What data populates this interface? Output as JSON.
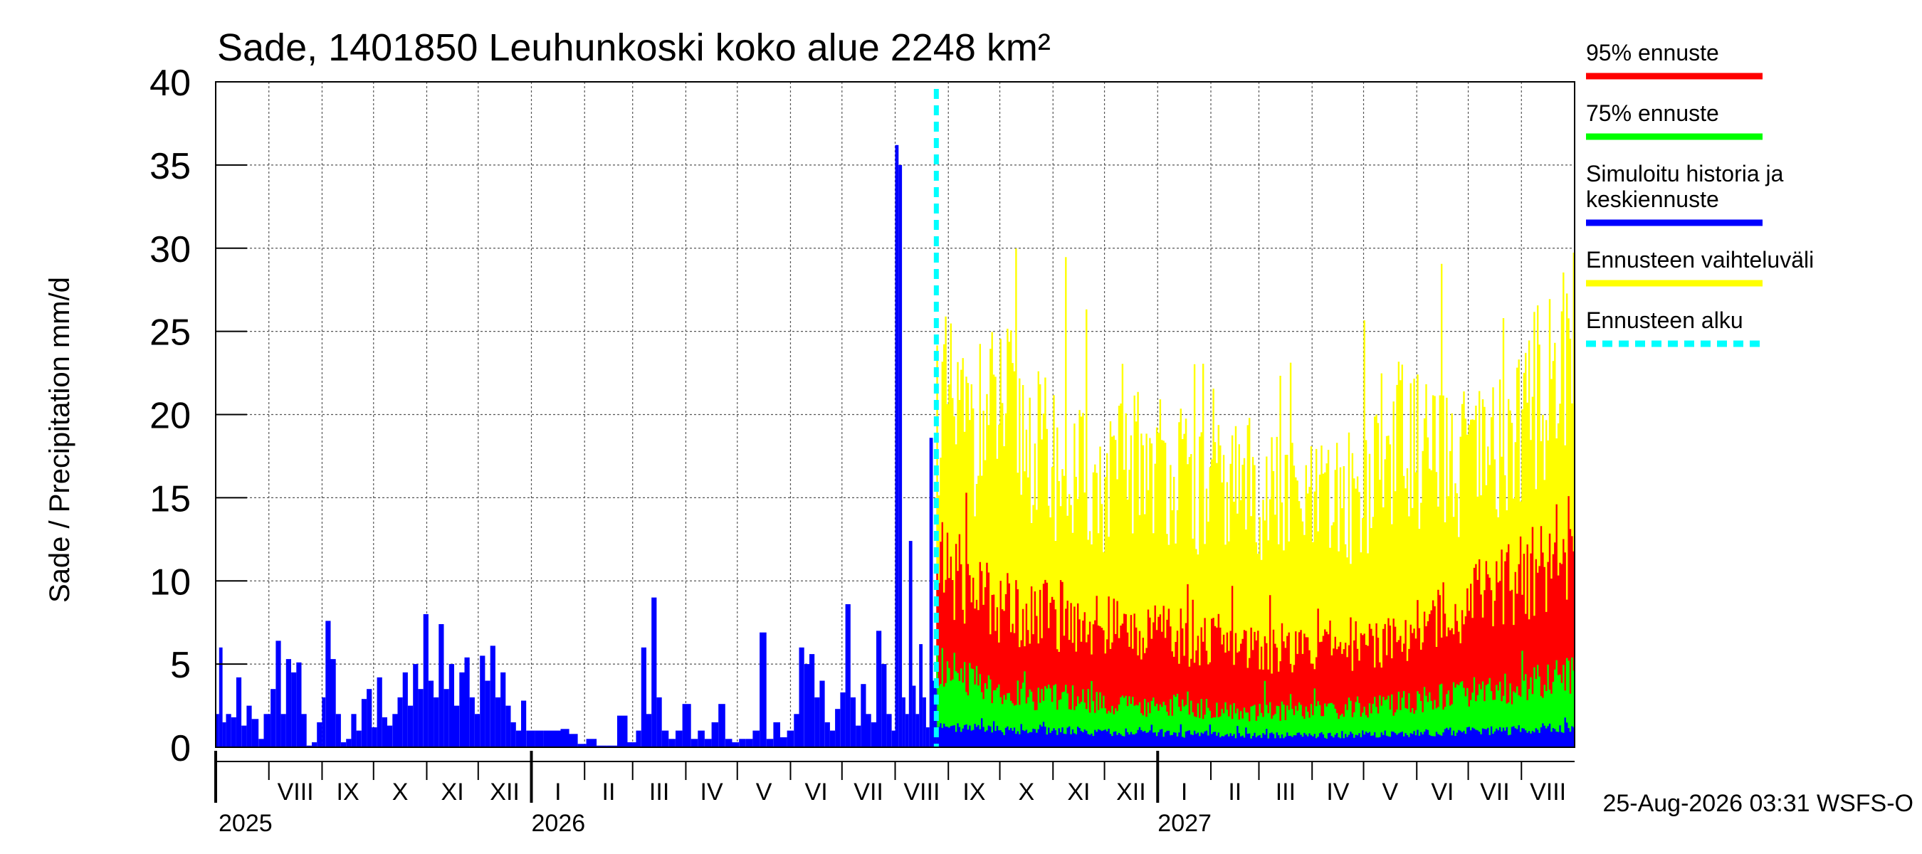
{
  "chart_data": {
    "type": "bar",
    "title": "Sade, 1401850 Leuhunkoski koko alue 2248 km²",
    "ylabel": "Sade / Precipitation   mm/d",
    "xlabel": "",
    "ylim": [
      0,
      40
    ],
    "yticks": [
      0,
      5,
      10,
      15,
      20,
      25,
      30,
      35,
      40
    ],
    "grid": true,
    "legend_position": "right",
    "x_range": [
      "2025-07-01",
      "2027-08-31"
    ],
    "forecast_start": "2026-08-25",
    "months": [
      {
        "label": "VIII",
        "start": "2025-08-01"
      },
      {
        "label": "IX",
        "start": "2025-09-01"
      },
      {
        "label": "X",
        "start": "2025-10-01"
      },
      {
        "label": "XI",
        "start": "2025-11-01"
      },
      {
        "label": "XII",
        "start": "2025-12-01"
      },
      {
        "label": "I",
        "start": "2026-01-01"
      },
      {
        "label": "II",
        "start": "2026-02-01"
      },
      {
        "label": "III",
        "start": "2026-03-01"
      },
      {
        "label": "IV",
        "start": "2026-04-01"
      },
      {
        "label": "V",
        "start": "2026-05-01"
      },
      {
        "label": "VI",
        "start": "2026-06-01"
      },
      {
        "label": "VII",
        "start": "2026-07-01"
      },
      {
        "label": "VIII",
        "start": "2026-08-01"
      },
      {
        "label": "IX",
        "start": "2026-09-01"
      },
      {
        "label": "X",
        "start": "2026-10-01"
      },
      {
        "label": "XI",
        "start": "2026-11-01"
      },
      {
        "label": "XII",
        "start": "2026-12-01"
      },
      {
        "label": "I",
        "start": "2027-01-01"
      },
      {
        "label": "II",
        "start": "2027-02-01"
      },
      {
        "label": "III",
        "start": "2027-03-01"
      },
      {
        "label": "IV",
        "start": "2027-04-01"
      },
      {
        "label": "V",
        "start": "2027-05-01"
      },
      {
        "label": "VI",
        "start": "2027-06-01"
      },
      {
        "label": "VII",
        "start": "2027-07-01"
      },
      {
        "label": "VIII",
        "start": "2027-08-01"
      }
    ],
    "years": [
      {
        "label": "2025",
        "start": "2025-07-01"
      },
      {
        "label": "2026",
        "start": "2026-01-01"
      },
      {
        "label": "2027",
        "start": "2027-01-01"
      }
    ],
    "history": {
      "name": "Simuloitu historia ja keskiennuste",
      "color": "#0000ff",
      "points": [
        [
          "2025-07-01",
          2.0
        ],
        [
          "2025-07-03",
          6.0
        ],
        [
          "2025-07-05",
          1.5
        ],
        [
          "2025-07-07",
          2.0
        ],
        [
          "2025-07-10",
          1.8
        ],
        [
          "2025-07-13",
          4.2
        ],
        [
          "2025-07-16",
          1.3
        ],
        [
          "2025-07-19",
          2.5
        ],
        [
          "2025-07-22",
          1.7
        ],
        [
          "2025-07-26",
          0.5
        ],
        [
          "2025-07-29",
          2.0
        ],
        [
          "2025-08-02",
          3.5
        ],
        [
          "2025-08-05",
          6.4
        ],
        [
          "2025-08-08",
          2.0
        ],
        [
          "2025-08-11",
          5.3
        ],
        [
          "2025-08-14",
          4.5
        ],
        [
          "2025-08-17",
          5.1
        ],
        [
          "2025-08-20",
          2.0
        ],
        [
          "2025-08-23",
          0.1
        ],
        [
          "2025-08-26",
          0.3
        ],
        [
          "2025-08-29",
          1.5
        ],
        [
          "2025-09-01",
          3.0
        ],
        [
          "2025-09-03",
          7.6
        ],
        [
          "2025-09-06",
          5.3
        ],
        [
          "2025-09-09",
          2.0
        ],
        [
          "2025-09-12",
          0.3
        ],
        [
          "2025-09-15",
          0.5
        ],
        [
          "2025-09-18",
          2.0
        ],
        [
          "2025-09-21",
          1.0
        ],
        [
          "2025-09-24",
          2.9
        ],
        [
          "2025-09-27",
          3.5
        ],
        [
          "2025-09-30",
          1.2
        ],
        [
          "2025-10-03",
          4.2
        ],
        [
          "2025-10-06",
          1.8
        ],
        [
          "2025-10-09",
          1.3
        ],
        [
          "2025-10-12",
          2.0
        ],
        [
          "2025-10-15",
          3.0
        ],
        [
          "2025-10-18",
          4.5
        ],
        [
          "2025-10-21",
          2.5
        ],
        [
          "2025-10-24",
          5.0
        ],
        [
          "2025-10-27",
          3.5
        ],
        [
          "2025-10-30",
          8.0
        ],
        [
          "2025-11-02",
          4.0
        ],
        [
          "2025-11-05",
          3.0
        ],
        [
          "2025-11-08",
          7.4
        ],
        [
          "2025-11-11",
          3.5
        ],
        [
          "2025-11-14",
          5.0
        ],
        [
          "2025-11-17",
          2.5
        ],
        [
          "2025-11-20",
          4.5
        ],
        [
          "2025-11-23",
          5.4
        ],
        [
          "2025-11-26",
          3.0
        ],
        [
          "2025-11-29",
          2.0
        ],
        [
          "2025-12-02",
          5.5
        ],
        [
          "2025-12-05",
          4.0
        ],
        [
          "2025-12-08",
          6.1
        ],
        [
          "2025-12-11",
          3.0
        ],
        [
          "2025-12-14",
          4.5
        ],
        [
          "2025-12-17",
          2.5
        ],
        [
          "2025-12-20",
          1.5
        ],
        [
          "2025-12-23",
          1.0
        ],
        [
          "2025-12-26",
          2.8
        ],
        [
          "2025-12-29",
          1.0
        ],
        [
          "2026-01-03",
          1.0
        ],
        [
          "2026-01-08",
          1.0
        ],
        [
          "2026-01-13",
          1.0
        ],
        [
          "2026-01-18",
          1.1
        ],
        [
          "2026-01-23",
          0.8
        ],
        [
          "2026-01-28",
          0.2
        ],
        [
          "2026-02-02",
          0.5
        ],
        [
          "2026-02-08",
          0.1
        ],
        [
          "2026-02-14",
          0.1
        ],
        [
          "2026-02-20",
          1.9
        ],
        [
          "2026-02-26",
          0.3
        ],
        [
          "2026-03-03",
          1.0
        ],
        [
          "2026-03-06",
          6.0
        ],
        [
          "2026-03-09",
          2.0
        ],
        [
          "2026-03-12",
          9.0
        ],
        [
          "2026-03-15",
          3.0
        ],
        [
          "2026-03-18",
          1.0
        ],
        [
          "2026-03-22",
          0.5
        ],
        [
          "2026-03-26",
          1.0
        ],
        [
          "2026-03-30",
          2.6
        ],
        [
          "2026-04-04",
          0.5
        ],
        [
          "2026-04-08",
          1.0
        ],
        [
          "2026-04-12",
          0.5
        ],
        [
          "2026-04-16",
          1.5
        ],
        [
          "2026-04-20",
          2.6
        ],
        [
          "2026-04-24",
          0.5
        ],
        [
          "2026-04-28",
          0.3
        ],
        [
          "2026-05-02",
          0.5
        ],
        [
          "2026-05-06",
          0.5
        ],
        [
          "2026-05-10",
          1.0
        ],
        [
          "2026-05-14",
          6.9
        ],
        [
          "2026-05-18",
          0.5
        ],
        [
          "2026-05-22",
          1.5
        ],
        [
          "2026-05-26",
          0.6
        ],
        [
          "2026-05-30",
          1.0
        ],
        [
          "2026-06-03",
          2.0
        ],
        [
          "2026-06-06",
          6.0
        ],
        [
          "2026-06-09",
          5.0
        ],
        [
          "2026-06-12",
          5.6
        ],
        [
          "2026-06-15",
          3.0
        ],
        [
          "2026-06-18",
          4.0
        ],
        [
          "2026-06-21",
          1.5
        ],
        [
          "2026-06-24",
          1.0
        ],
        [
          "2026-06-27",
          2.3
        ],
        [
          "2026-06-30",
          3.3
        ],
        [
          "2026-07-03",
          8.6
        ],
        [
          "2026-07-06",
          3.0
        ],
        [
          "2026-07-09",
          1.3
        ],
        [
          "2026-07-12",
          3.8
        ],
        [
          "2026-07-15",
          2.0
        ],
        [
          "2026-07-18",
          1.5
        ],
        [
          "2026-07-21",
          7.0
        ],
        [
          "2026-07-24",
          5.0
        ],
        [
          "2026-07-27",
          2.0
        ],
        [
          "2026-07-30",
          1.0
        ],
        [
          "2026-08-01",
          36.2
        ],
        [
          "2026-08-03",
          35.0
        ],
        [
          "2026-08-05",
          3.0
        ],
        [
          "2026-08-07",
          2.0
        ],
        [
          "2026-08-09",
          12.4
        ],
        [
          "2026-08-11",
          3.7
        ],
        [
          "2026-08-13",
          2.0
        ],
        [
          "2026-08-15",
          6.2
        ],
        [
          "2026-08-17",
          3.0
        ],
        [
          "2026-08-19",
          1.2
        ],
        [
          "2026-08-21",
          18.6
        ],
        [
          "2026-08-23",
          4.0
        ],
        [
          "2026-08-25",
          3.5
        ]
      ]
    },
    "forecast": {
      "range_series": {
        "name": "Ennusteen vaihteluväli",
        "color": "#ffff00",
        "values": [
          21.0,
          19.0,
          20.5,
          18.0,
          16.5,
          15.5,
          17.5,
          16.8,
          15.0,
          16.0,
          15.2,
          14.5,
          14.8,
          16.0,
          18.5,
          17.0,
          16.5,
          18.5,
          21.5,
          24.0
        ]
      },
      "p95_series": {
        "name": "95% ennuste",
        "color": "#ff0000",
        "values": [
          11.0,
          9.8,
          8.5,
          8.2,
          7.8,
          7.2,
          7.0,
          6.8,
          6.5,
          6.2,
          6.0,
          5.8,
          6.2,
          6.5,
          7.0,
          8.0,
          9.0,
          10.0,
          11.0,
          12.5
        ]
      },
      "p75_series": {
        "name": "75% ennuste",
        "color": "#00ff00",
        "values": [
          5.0,
          4.0,
          3.4,
          3.0,
          3.0,
          2.6,
          2.5,
          2.5,
          2.3,
          2.1,
          2.2,
          2.2,
          2.3,
          2.5,
          2.7,
          3.0,
          3.2,
          3.5,
          4.0,
          4.5
        ]
      },
      "median_series": {
        "name": "Simuloitu historia ja keskiennuste",
        "color": "#0000ff",
        "values": [
          1.2,
          1.1,
          1.0,
          1.0,
          1.0,
          0.9,
          0.9,
          0.8,
          0.8,
          0.7,
          0.7,
          0.7,
          0.7,
          0.8,
          0.8,
          0.9,
          1.0,
          1.0,
          1.1,
          1.2
        ]
      }
    },
    "legend": [
      {
        "name": "95% ennuste",
        "color": "#ff0000",
        "style": "solid"
      },
      {
        "name": "75% ennuste",
        "color": "#00ff00",
        "style": "solid"
      },
      {
        "name": "Simuloitu historia ja",
        "name2": "keskiennuste",
        "color": "#0000ff",
        "style": "solid"
      },
      {
        "name": "Ennusteen vaihteluväli",
        "color": "#ffff00",
        "style": "solid"
      },
      {
        "name": "Ennusteen alku",
        "color": "#00ffff",
        "style": "dashed"
      }
    ],
    "footer": "25-Aug-2026 03:31 WSFS-O"
  }
}
